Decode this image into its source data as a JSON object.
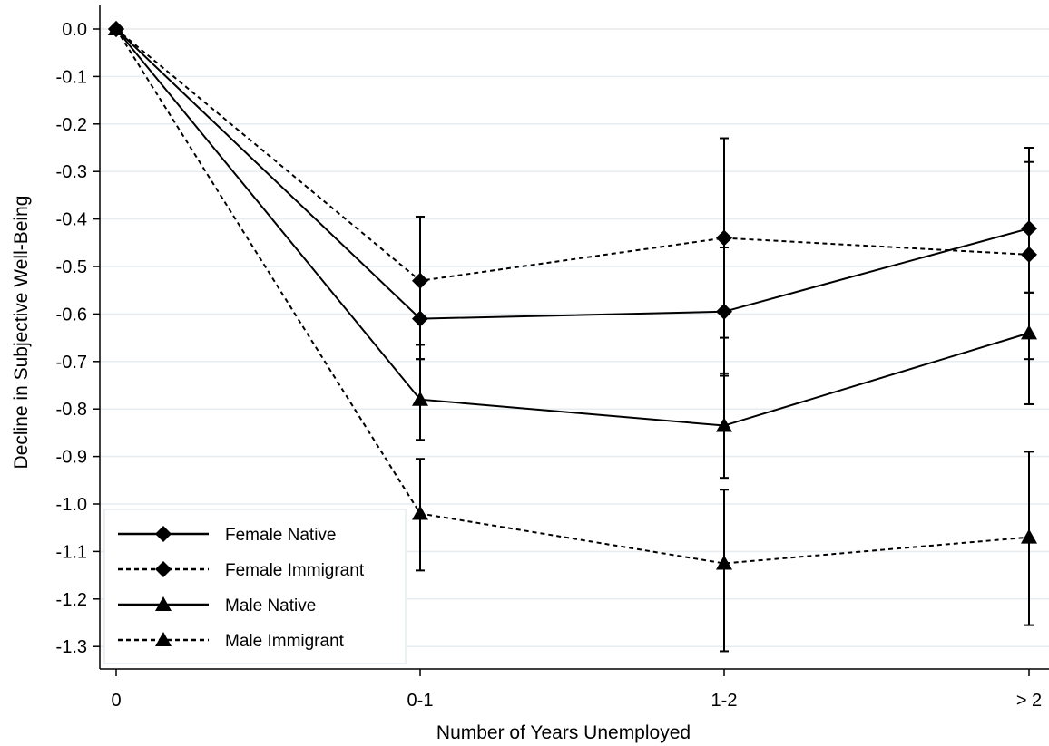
{
  "chart_data": {
    "type": "line",
    "xlabel": "Number of Years Unemployed",
    "ylabel": "Decline in Subjective Well-Being",
    "categories": [
      "0",
      "0-1",
      "1-2",
      "> 2"
    ],
    "ylim": [
      -1.35,
      0.03
    ],
    "yticks": [
      0.0,
      -0.1,
      -0.2,
      -0.3,
      -0.4,
      -0.5,
      -0.6,
      -0.7,
      -0.8,
      -0.9,
      -1.0,
      -1.1,
      -1.2,
      -1.3
    ],
    "ytick_labels": [
      "0.0",
      "-0.1",
      "-0.2",
      "-0.3",
      "-0.4",
      "-0.5",
      "-0.6",
      "-0.7",
      "-0.8",
      "-0.9",
      "-1.0",
      "-1.1",
      "-1.2",
      "-1.3"
    ],
    "grid": true,
    "legend_position": "bottom-left",
    "series": [
      {
        "name": "Female Native",
        "marker": "diamond",
        "line": "solid",
        "values": [
          0.0,
          -0.61,
          -0.595,
          -0.42
        ],
        "ci_low": [
          null,
          -0.695,
          -0.73,
          -0.555
        ],
        "ci_high": [
          null,
          -0.535,
          -0.46,
          -0.28
        ]
      },
      {
        "name": "Female Immigrant",
        "marker": "diamond",
        "line": "dashed",
        "values": [
          0.0,
          -0.53,
          -0.44,
          -0.475
        ],
        "ci_low": [
          null,
          -0.665,
          -0.65,
          -0.695
        ],
        "ci_high": [
          null,
          -0.395,
          -0.23,
          -0.25
        ]
      },
      {
        "name": "Male Native",
        "marker": "triangle",
        "line": "solid",
        "values": [
          0.0,
          -0.78,
          -0.835,
          -0.64
        ],
        "ci_low": [
          null,
          -0.865,
          -0.945,
          -0.79
        ],
        "ci_high": [
          null,
          -0.695,
          -0.725,
          -0.555
        ]
      },
      {
        "name": "Male Immigrant",
        "marker": "triangle",
        "line": "dashed",
        "values": [
          0.0,
          -1.02,
          -1.125,
          -1.07
        ],
        "ci_low": [
          null,
          -1.14,
          -1.31,
          -1.255
        ],
        "ci_high": [
          null,
          -0.905,
          -0.97,
          -0.89
        ]
      }
    ]
  }
}
